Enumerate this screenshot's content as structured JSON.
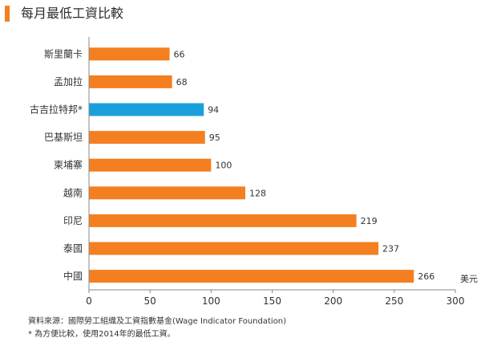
{
  "title": "每月最低工資比較",
  "chart_data": {
    "type": "bar",
    "orientation": "horizontal",
    "categories": [
      "斯里蘭卡",
      "孟加拉",
      "古吉拉特邦*",
      "巴基斯坦",
      "柬埔寨",
      "越南",
      "印尼",
      "泰國",
      "中國"
    ],
    "values": [
      66,
      68,
      94,
      95,
      100,
      128,
      219,
      237,
      266
    ],
    "highlight_index": 2,
    "xlim": [
      0,
      300
    ],
    "xticks": [
      0,
      50,
      100,
      150,
      200,
      250,
      300
    ],
    "unit_label": "美元",
    "grid": false,
    "colors": {
      "default": "#f47f20",
      "highlight": "#19a0dc"
    }
  },
  "footnotes": [
    "資料來源：國際勞工組織及工資指數基金(Wage Indicator Foundation)",
    "* 為方便比較，使用2014年的最低工資。"
  ]
}
